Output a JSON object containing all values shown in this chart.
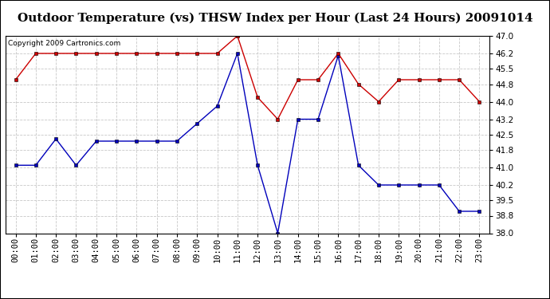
{
  "title": "Outdoor Temperature (vs) THSW Index per Hour (Last 24 Hours) 20091014",
  "copyright": "Copyright 2009 Cartronics.com",
  "hours": [
    "00:00",
    "01:00",
    "02:00",
    "03:00",
    "04:00",
    "05:00",
    "06:00",
    "07:00",
    "08:00",
    "09:00",
    "10:00",
    "11:00",
    "12:00",
    "13:00",
    "14:00",
    "15:00",
    "16:00",
    "17:00",
    "18:00",
    "19:00",
    "20:00",
    "21:00",
    "22:00",
    "23:00"
  ],
  "temp_blue": [
    41.1,
    41.1,
    42.3,
    41.1,
    42.2,
    42.2,
    42.2,
    42.2,
    42.2,
    43.0,
    43.8,
    46.2,
    41.1,
    38.0,
    43.2,
    43.2,
    46.1,
    41.1,
    40.2,
    40.2,
    40.2,
    40.2,
    39.0,
    39.0
  ],
  "thsw_red": [
    45.0,
    46.2,
    46.2,
    46.2,
    46.2,
    46.2,
    46.2,
    46.2,
    46.2,
    46.2,
    46.2,
    47.0,
    44.2,
    43.2,
    45.0,
    45.0,
    46.2,
    44.8,
    44.0,
    45.0,
    45.0,
    45.0,
    45.0,
    44.0
  ],
  "ylim": [
    38.0,
    47.0
  ],
  "yticks": [
    38.0,
    38.8,
    39.5,
    40.2,
    41.0,
    41.8,
    42.5,
    43.2,
    44.0,
    44.8,
    45.5,
    46.2,
    47.0
  ],
  "bg_color": "#ffffff",
  "grid_color": "#c8c8c8",
  "blue_color": "#0000bb",
  "red_color": "#cc0000",
  "title_fontsize": 11,
  "copyright_fontsize": 6.5,
  "tick_fontsize": 7.5
}
